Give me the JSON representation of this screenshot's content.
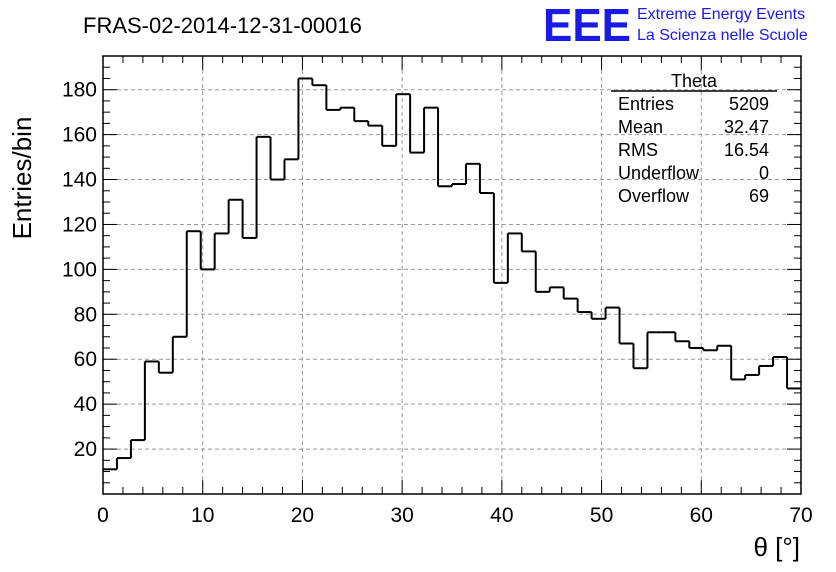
{
  "title": "FRAS-02-2014-12-31-00016",
  "logo": {
    "mark": "EEE",
    "line1": "Extreme Energy Events",
    "line2": "La Scienza nelle Scuole",
    "color": "#1a1ae6"
  },
  "stats_box": {
    "title": "Theta",
    "rows": [
      {
        "label": "Entries",
        "value": "5209"
      },
      {
        "label": "Mean",
        "value": "32.47"
      },
      {
        "label": "RMS",
        "value": "16.54"
      },
      {
        "label": "Underflow",
        "value": "0"
      },
      {
        "label": "Overflow",
        "value": "69"
      }
    ]
  },
  "chart_data": {
    "type": "bar",
    "style": "step-histogram",
    "title": "FRAS-02-2014-12-31-00016",
    "xlabel": "θ [°]",
    "ylabel": "Entries/bin",
    "xlim": [
      0,
      70
    ],
    "ylim": [
      0,
      195
    ],
    "bin_width": 1.4,
    "xticks": [
      0,
      10,
      20,
      30,
      40,
      50,
      60,
      70
    ],
    "yticks": [
      20,
      40,
      60,
      80,
      100,
      120,
      140,
      160,
      180
    ],
    "grid": true,
    "legend": "none",
    "bin_edges_start": 0,
    "values": [
      11,
      16,
      24,
      59,
      54,
      70,
      117,
      100,
      116,
      131,
      114,
      159,
      140,
      149,
      185,
      182,
      171,
      172,
      166,
      164,
      155,
      178,
      152,
      172,
      137,
      138,
      147,
      134,
      94,
      116,
      108,
      90,
      92,
      87,
      81,
      78,
      83,
      67,
      56,
      72,
      72,
      68,
      65,
      64,
      66,
      51,
      53,
      57,
      61,
      47
    ],
    "line_color": "#000000"
  }
}
